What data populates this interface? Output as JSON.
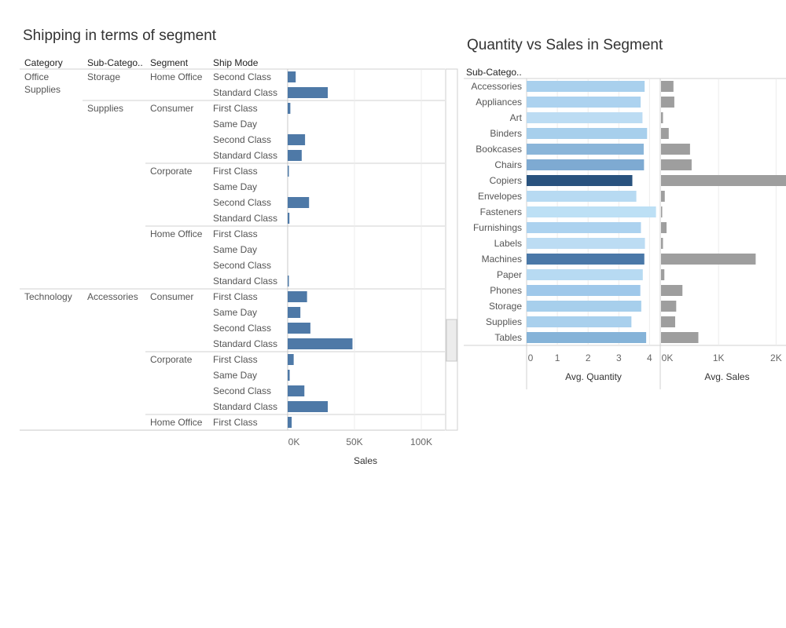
{
  "left": {
    "title": "Shipping in terms of segment",
    "headers": {
      "category": "Category",
      "subcategory": "Sub-Catego..",
      "segment": "Segment",
      "ship_mode": "Ship Mode"
    },
    "x_axis": {
      "label": "Sales",
      "ticks": [
        "0K",
        "50K",
        "100K"
      ],
      "tick_values": [
        0,
        50000,
        100000
      ]
    },
    "bar_color": "#4e79a7"
  },
  "right": {
    "title": "Quantity vs Sales in Segment",
    "row_header": "Sub-Catego..",
    "qty_axis": {
      "label": "Avg. Quantity",
      "ticks": [
        "0",
        "1",
        "2",
        "3",
        "4"
      ],
      "tick_values": [
        0,
        1,
        2,
        3,
        4
      ]
    },
    "sales_axis": {
      "label": "Avg. Sales",
      "ticks": [
        "0K",
        "1K",
        "2K"
      ],
      "tick_values": [
        0,
        1000,
        2000
      ]
    },
    "sales_color": "#9e9e9e"
  },
  "chart_data": [
    {
      "type": "bar",
      "orientation": "horizontal",
      "title": "Shipping in terms of segment",
      "xlabel": "Sales",
      "xlim": [
        0,
        112000
      ],
      "columns": [
        "Category",
        "Sub-Catego..",
        "Segment",
        "Ship Mode"
      ],
      "rows": [
        {
          "category": "Office Supplies",
          "subcategory": "Storage",
          "segment": "Home Office",
          "ship_mode": "Second Class",
          "value": 6000
        },
        {
          "category": "Office Supplies",
          "subcategory": "Storage",
          "segment": "Home Office",
          "ship_mode": "Standard Class",
          "value": 30000
        },
        {
          "category": "Office Supplies",
          "subcategory": "Supplies",
          "segment": "Consumer",
          "ship_mode": "First Class",
          "value": 2000
        },
        {
          "category": "Office Supplies",
          "subcategory": "Supplies",
          "segment": "Consumer",
          "ship_mode": "Same Day",
          "value": 0
        },
        {
          "category": "Office Supplies",
          "subcategory": "Supplies",
          "segment": "Consumer",
          "ship_mode": "Second Class",
          "value": 13000
        },
        {
          "category": "Office Supplies",
          "subcategory": "Supplies",
          "segment": "Consumer",
          "ship_mode": "Standard Class",
          "value": 10500
        },
        {
          "category": "Office Supplies",
          "subcategory": "Supplies",
          "segment": "Corporate",
          "ship_mode": "First Class",
          "value": 500
        },
        {
          "category": "Office Supplies",
          "subcategory": "Supplies",
          "segment": "Corporate",
          "ship_mode": "Same Day",
          "value": 0
        },
        {
          "category": "Office Supplies",
          "subcategory": "Supplies",
          "segment": "Corporate",
          "ship_mode": "Second Class",
          "value": 16000
        },
        {
          "category": "Office Supplies",
          "subcategory": "Supplies",
          "segment": "Corporate",
          "ship_mode": "Standard Class",
          "value": 1300
        },
        {
          "category": "Office Supplies",
          "subcategory": "Supplies",
          "segment": "Home Office",
          "ship_mode": "First Class",
          "value": 0
        },
        {
          "category": "Office Supplies",
          "subcategory": "Supplies",
          "segment": "Home Office",
          "ship_mode": "Same Day",
          "value": 0
        },
        {
          "category": "Office Supplies",
          "subcategory": "Supplies",
          "segment": "Home Office",
          "ship_mode": "Second Class",
          "value": 0
        },
        {
          "category": "Office Supplies",
          "subcategory": "Supplies",
          "segment": "Home Office",
          "ship_mode": "Standard Class",
          "value": 500
        },
        {
          "category": "Technology",
          "subcategory": "Accessories",
          "segment": "Consumer",
          "ship_mode": "First Class",
          "value": 14500
        },
        {
          "category": "Technology",
          "subcategory": "Accessories",
          "segment": "Consumer",
          "ship_mode": "Same Day",
          "value": 9500
        },
        {
          "category": "Technology",
          "subcategory": "Accessories",
          "segment": "Consumer",
          "ship_mode": "Second Class",
          "value": 17000
        },
        {
          "category": "Technology",
          "subcategory": "Accessories",
          "segment": "Consumer",
          "ship_mode": "Standard Class",
          "value": 48500
        },
        {
          "category": "Technology",
          "subcategory": "Accessories",
          "segment": "Corporate",
          "ship_mode": "First Class",
          "value": 4500
        },
        {
          "category": "Technology",
          "subcategory": "Accessories",
          "segment": "Corporate",
          "ship_mode": "Same Day",
          "value": 1500
        },
        {
          "category": "Technology",
          "subcategory": "Accessories",
          "segment": "Corporate",
          "ship_mode": "Second Class",
          "value": 12500
        },
        {
          "category": "Technology",
          "subcategory": "Accessories",
          "segment": "Corporate",
          "ship_mode": "Standard Class",
          "value": 30000
        },
        {
          "category": "Technology",
          "subcategory": "Accessories",
          "segment": "Home Office",
          "ship_mode": "First Class",
          "value": 3000
        }
      ]
    },
    {
      "type": "bar",
      "orientation": "horizontal",
      "title": "Quantity vs Sales in Segment",
      "categories": [
        "Accessories",
        "Appliances",
        "Art",
        "Binders",
        "Bookcases",
        "Chairs",
        "Copiers",
        "Envelopes",
        "Fasteners",
        "Furnishings",
        "Labels",
        "Machines",
        "Paper",
        "Phones",
        "Storage",
        "Supplies",
        "Tables"
      ],
      "series": [
        {
          "name": "Avg. Quantity",
          "values": [
            3.84,
            3.71,
            3.77,
            3.92,
            3.81,
            3.82,
            3.44,
            3.57,
            4.21,
            3.72,
            3.85,
            3.83,
            3.78,
            3.7,
            3.73,
            3.41,
            3.89
          ],
          "colors": [
            "#a9d0ed",
            "#acd2ef",
            "#bcdcf3",
            "#a7cfec",
            "#8ab5d9",
            "#7eaad2",
            "#29527e",
            "#b7daf2",
            "#bde0f5",
            "#acd2ef",
            "#bcdcf3",
            "#4a78a8",
            "#b7daf2",
            "#9fc8ea",
            "#a7cfec",
            "#a9d0ed",
            "#85b3d8"
          ]
        },
        {
          "name": "Avg. Sales",
          "values": [
            216,
            231,
            34,
            134,
            504,
            532,
            2198,
            65,
            14,
            96,
            34,
            1645,
            58,
            372,
            264,
            246,
            649
          ]
        }
      ],
      "xlim_quantity": [
        0,
        4.35
      ],
      "xlim_sales": [
        0,
        2180
      ]
    }
  ]
}
